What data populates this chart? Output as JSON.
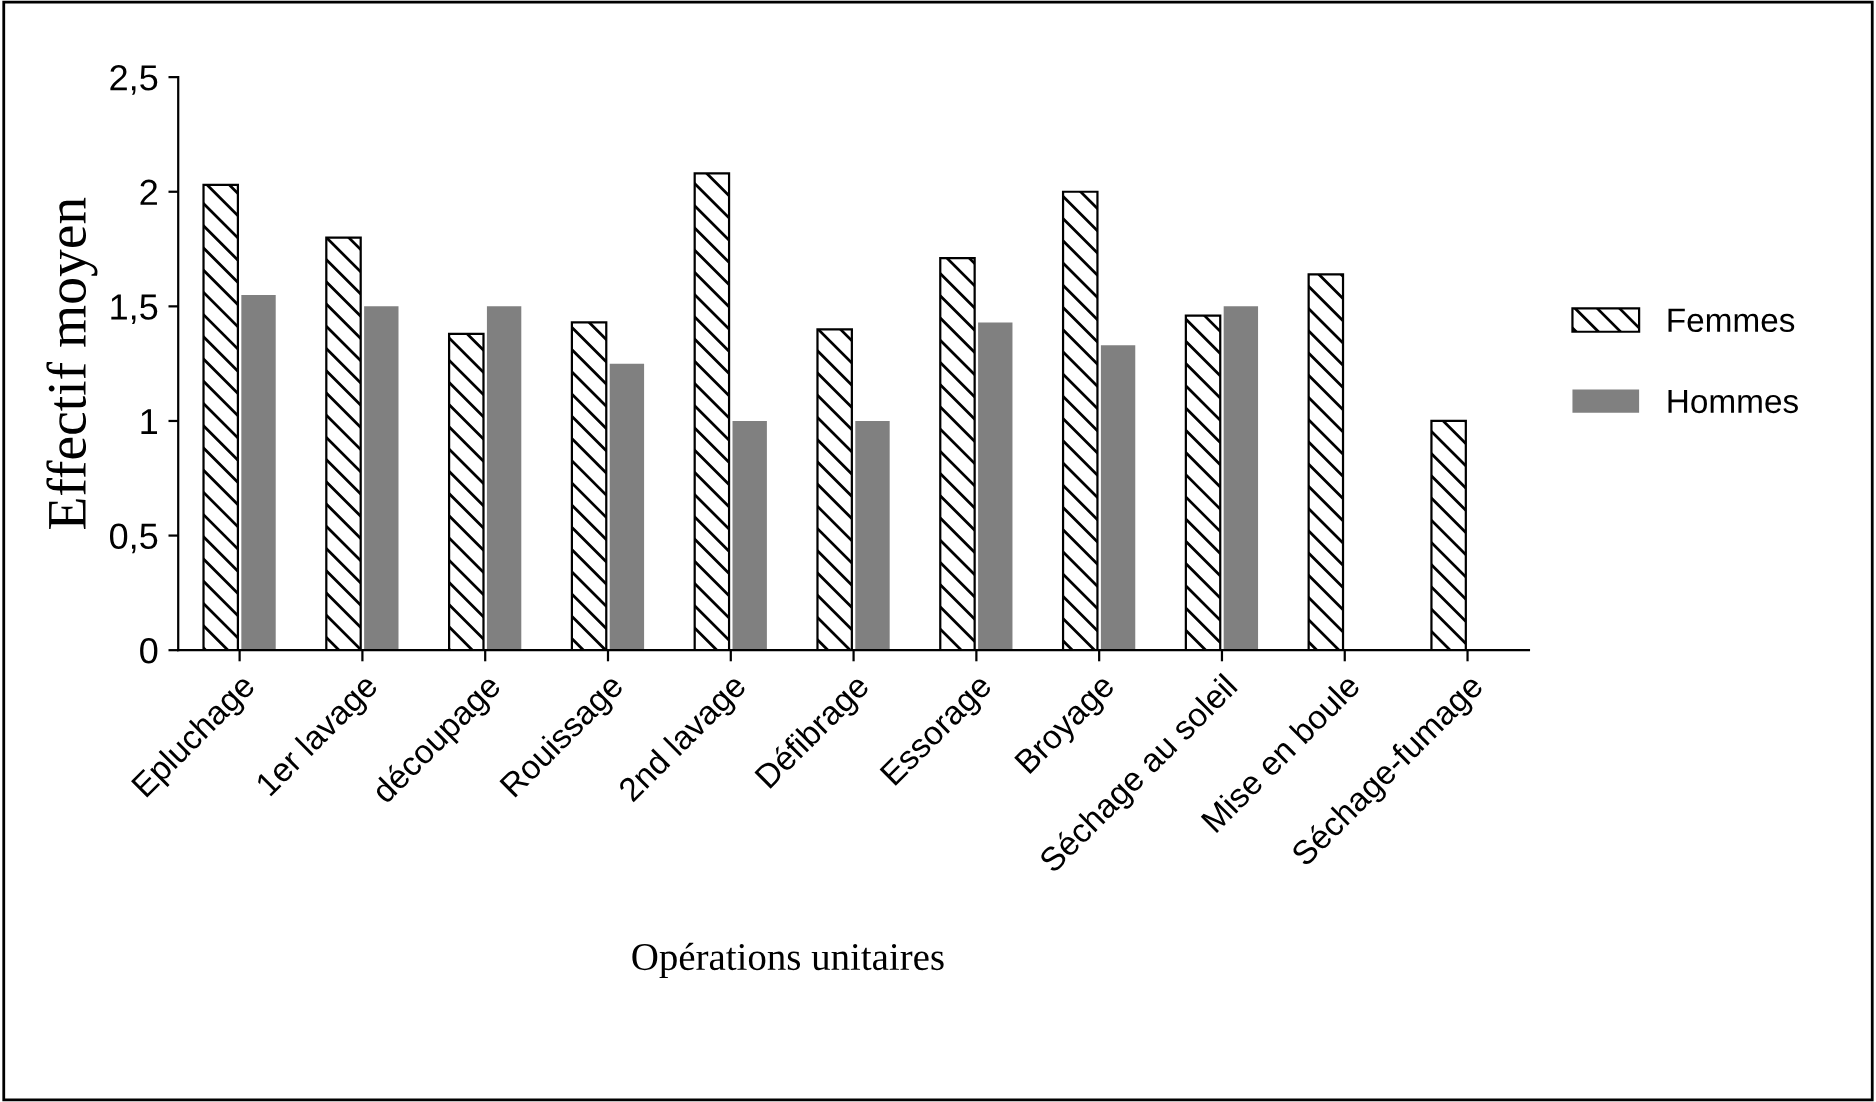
{
  "chart_data": {
    "type": "bar",
    "xlabel": "Opérations unitaires",
    "ylabel": "Effectif moyen",
    "categories": [
      "Epluchage",
      "1er lavage",
      "découpage",
      "Rouissage",
      "2nd lavage",
      "Défibrage",
      "Essorage",
      "Broyage",
      "Séchage au soleil",
      "Mise en boule",
      "Séchage-fumage"
    ],
    "series": [
      {
        "name": "Femmes",
        "color": "#000000",
        "values": [
          2.03,
          1.8,
          1.38,
          1.43,
          2.08,
          1.4,
          1.71,
          2.0,
          1.46,
          1.64,
          1.0
        ]
      },
      {
        "name": "Hommes",
        "color": "#808080",
        "values": [
          1.55,
          1.5,
          1.5,
          1.25,
          1.0,
          1.0,
          1.43,
          1.33,
          1.5,
          null,
          null
        ]
      }
    ],
    "ylim": [
      0,
      2.5
    ],
    "yticks": [
      0,
      {
        "value": 0.5,
        "label": "0,5"
      },
      1,
      {
        "value": 1.5,
        "label": "1,5"
      },
      2,
      {
        "value": 2.5,
        "label": "2,5"
      }
    ],
    "grid": false,
    "legend": "right"
  }
}
